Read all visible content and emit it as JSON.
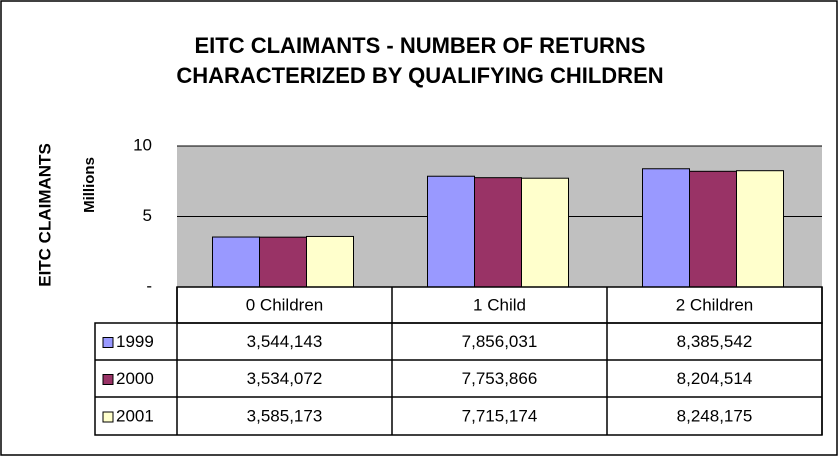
{
  "chart_data": {
    "type": "bar",
    "title": [
      "EITC CLAIMANTS - NUMBER OF RETURNS",
      "CHARACTERIZED BY QUALIFYING CHILDREN"
    ],
    "y_label": "EITC CLAIMANTS",
    "y_unit_label": "Millions",
    "categories": [
      "0 Children",
      "1 Child",
      "2 Children"
    ],
    "series": [
      {
        "name": "1999",
        "color": "#9999ff",
        "values": [
          3.544143,
          7.856031,
          8.385542
        ],
        "value_labels": [
          "3,544,143",
          "7,856,031",
          "8,385,542"
        ]
      },
      {
        "name": "2000",
        "color": "#993366",
        "values": [
          3.534072,
          7.753866,
          8.204514
        ],
        "value_labels": [
          "3,534,072",
          "7,753,866",
          "8,204,514"
        ]
      },
      {
        "name": "2001",
        "color": "#ffffcc",
        "values": [
          3.585173,
          7.715174,
          8.248175
        ],
        "value_labels": [
          "3,585,173",
          "7,715,174",
          "8,248,175"
        ]
      }
    ],
    "ylim": [
      0,
      10
    ],
    "yticks": [
      {
        "value": 0,
        "label": "-"
      },
      5,
      10
    ],
    "grid": true,
    "plot_background": "#c0c0c0"
  }
}
